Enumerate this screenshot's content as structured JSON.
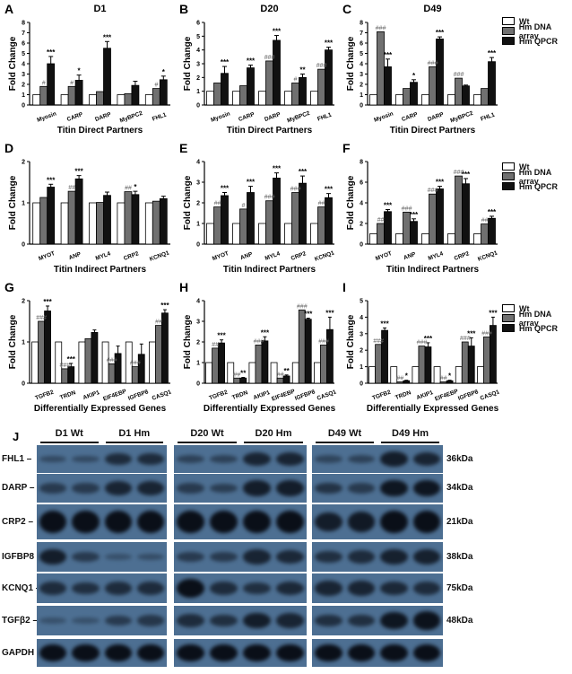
{
  "legend": {
    "items": [
      "Wt",
      "Hm DNA array",
      "Hm QPCR"
    ],
    "colors": [
      "#ffffff",
      "#707070",
      "#111111"
    ]
  },
  "chart_data": [
    {
      "panel": "A",
      "title": "D1",
      "type": "bar",
      "ylabel": "Fold Change",
      "xlabel": "Titin Direct Partners",
      "ylim": [
        0,
        8
      ],
      "yticks": [
        0,
        1,
        2,
        3,
        4,
        5,
        6,
        7,
        8
      ],
      "categories": [
        "Myosin",
        "CARP",
        "DARP",
        "MyBPC2",
        "FHL1"
      ],
      "series": [
        {
          "name": "Wt",
          "values": [
            1,
            1,
            1,
            1,
            1
          ]
        },
        {
          "name": "Hm DNA array",
          "values": [
            1.8,
            1.8,
            1.3,
            1.1,
            1.6
          ]
        },
        {
          "name": "Hm QPCR",
          "values": [
            4.0,
            2.4,
            5.5,
            1.9,
            2.45
          ],
          "errors": [
            0.7,
            0.5,
            0.65,
            0.4,
            0.35
          ]
        }
      ],
      "annotations": {
        "array": [
          "#",
          "#",
          "",
          "",
          "#"
        ],
        "qpcr": [
          "***",
          "*",
          "***",
          "",
          "*"
        ]
      }
    },
    {
      "panel": "B",
      "title": "D20",
      "type": "bar",
      "ylabel": "Fold Change",
      "xlabel": "Titin Direct Partners",
      "ylim": [
        0,
        6
      ],
      "yticks": [
        0,
        1,
        2,
        3,
        4,
        5,
        6
      ],
      "categories": [
        "Myosin",
        "CARP",
        "DARP",
        "MyBPC2",
        "FHL1"
      ],
      "series": [
        {
          "name": "Wt",
          "values": [
            1,
            1,
            1,
            1,
            1
          ]
        },
        {
          "name": "Hm DNA array",
          "values": [
            1.6,
            1.4,
            3.2,
            1.6,
            2.6
          ]
        },
        {
          "name": "Hm QPCR",
          "values": [
            2.3,
            2.7,
            4.7,
            2.0,
            4.0
          ],
          "errors": [
            0.5,
            0.2,
            0.35,
            0.25,
            0.2
          ]
        }
      ],
      "annotations": {
        "array": [
          "",
          "",
          "###",
          "#",
          "###"
        ],
        "qpcr": [
          "***",
          "***",
          "***",
          "**",
          "***"
        ]
      }
    },
    {
      "panel": "C",
      "title": "D49",
      "type": "bar",
      "ylabel": "Fold Change",
      "xlabel": "Titin Direct Partners",
      "ylim": [
        0,
        8
      ],
      "yticks": [
        0,
        1,
        2,
        3,
        4,
        5,
        6,
        7,
        8
      ],
      "categories": [
        "Myosin",
        "CARP",
        "DARP",
        "MyBPC2",
        "FHL1"
      ],
      "series": [
        {
          "name": "Wt",
          "values": [
            1,
            1,
            1,
            1,
            1
          ]
        },
        {
          "name": "Hm DNA array",
          "values": [
            7.1,
            1.6,
            3.7,
            2.6,
            1.6
          ]
        },
        {
          "name": "Hm QPCR",
          "values": [
            3.7,
            2.2,
            6.4,
            1.85,
            4.2
          ],
          "errors": [
            0.75,
            0.25,
            0.2,
            0.08,
            0.4
          ]
        }
      ],
      "annotations": {
        "array": [
          "###",
          "",
          "###",
          "###",
          ""
        ],
        "qpcr": [
          "***",
          "*",
          "***",
          "",
          "***"
        ]
      }
    },
    {
      "panel": "D",
      "title": "",
      "type": "bar",
      "ylabel": "Fold Change",
      "xlabel": "Titin Indirect Partners",
      "ylim": [
        0,
        2
      ],
      "yticks": [
        0,
        1,
        2
      ],
      "categories": [
        "MYOT",
        "ANP",
        "MYL4",
        "CRP2",
        "KCNQ1"
      ],
      "series": [
        {
          "name": "Wt",
          "values": [
            1,
            1,
            1,
            1,
            1
          ]
        },
        {
          "name": "Hm DNA array",
          "values": [
            1.13,
            1.28,
            1.01,
            1.27,
            1.04
          ]
        },
        {
          "name": "Hm QPCR",
          "values": [
            1.38,
            1.58,
            1.18,
            1.2,
            1.1
          ],
          "errors": [
            0.07,
            0.08,
            0.08,
            0.08,
            0.06
          ]
        }
      ],
      "annotations": {
        "array": [
          "",
          "##",
          "",
          "##",
          ""
        ],
        "qpcr": [
          "***",
          "***",
          "",
          "*",
          ""
        ]
      }
    },
    {
      "panel": "E",
      "title": "",
      "type": "bar",
      "ylabel": "Fold Change",
      "xlabel": "Titin Indirect Partners",
      "ylim": [
        0,
        4
      ],
      "yticks": [
        0,
        1,
        2,
        3,
        4
      ],
      "categories": [
        "MYOT",
        "ANP",
        "MYL4",
        "CRP2",
        "KCNQ1"
      ],
      "series": [
        {
          "name": "Wt",
          "values": [
            1,
            1,
            1,
            1,
            1
          ]
        },
        {
          "name": "Hm DNA array",
          "values": [
            1.8,
            1.7,
            2.1,
            2.5,
            1.8
          ]
        },
        {
          "name": "Hm QPCR",
          "values": [
            2.35,
            2.5,
            3.2,
            2.95,
            2.25
          ],
          "errors": [
            0.15,
            0.3,
            0.25,
            0.35,
            0.2
          ]
        }
      ],
      "annotations": {
        "array": [
          "##",
          "#",
          "###",
          "###",
          "##"
        ],
        "qpcr": [
          "***",
          "***",
          "***",
          "***",
          "***"
        ]
      }
    },
    {
      "panel": "F",
      "title": "",
      "type": "bar",
      "ylabel": "Fold Change",
      "xlabel": "Titin Indirect Partners",
      "ylim": [
        0,
        8
      ],
      "yticks": [
        0,
        2,
        4,
        6,
        8
      ],
      "categories": [
        "MYOT",
        "ANP",
        "MYL4",
        "CRP2",
        "KCNQ1"
      ],
      "series": [
        {
          "name": "Wt",
          "values": [
            1,
            1,
            1,
            1,
            1
          ]
        },
        {
          "name": "Hm DNA array",
          "values": [
            2.0,
            3.1,
            4.85,
            6.6,
            1.95
          ]
        },
        {
          "name": "Hm QPCR",
          "values": [
            3.15,
            2.2,
            5.35,
            5.85,
            2.5
          ],
          "errors": [
            0.2,
            0.25,
            0.25,
            0.5,
            0.2
          ]
        }
      ],
      "annotations": {
        "array": [
          "##",
          "###",
          "###",
          "###",
          "##"
        ],
        "qpcr": [
          "***",
          "***",
          "***",
          "***",
          "***"
        ]
      }
    },
    {
      "panel": "G",
      "title": "",
      "type": "bar",
      "ylabel": "Fold Change",
      "xlabel": "Differentially Expressed Genes",
      "ylim": [
        0,
        2
      ],
      "yticks": [
        0,
        1,
        2
      ],
      "categories": [
        "TGFB2",
        "TRDN",
        "AKIP1",
        "EIF4EBP",
        "IGFBP8",
        "CASQ1"
      ],
      "series": [
        {
          "name": "Wt",
          "values": [
            1,
            1,
            1,
            1,
            1,
            1
          ]
        },
        {
          "name": "Hm DNA array",
          "values": [
            1.5,
            0.35,
            1.08,
            0.47,
            0.4,
            1.4
          ]
        },
        {
          "name": "Hm QPCR",
          "values": [
            1.75,
            0.4,
            1.23,
            0.72,
            0.7,
            1.7
          ],
          "errors": [
            0.12,
            0.08,
            0.06,
            0.18,
            0.25,
            0.08
          ]
        }
      ],
      "annotations": {
        "array": [
          "###",
          "###",
          "",
          "###",
          "###",
          "##"
        ],
        "qpcr": [
          "***",
          "***",
          "",
          "",
          "",
          "***"
        ]
      }
    },
    {
      "panel": "H",
      "title": "",
      "type": "bar",
      "ylabel": "Fold Change",
      "xlabel": "Differentially Expressed Genes",
      "ylim": [
        0,
        4
      ],
      "yticks": [
        0,
        1,
        2,
        3,
        4
      ],
      "categories": [
        "TGFB2",
        "TRDN",
        "AKIP1",
        "EIF4EBP",
        "IGFBP8",
        "CASQ1"
      ],
      "series": [
        {
          "name": "Wt",
          "values": [
            1,
            1,
            1,
            1,
            1,
            1
          ]
        },
        {
          "name": "Hm DNA array",
          "values": [
            1.7,
            0.25,
            1.85,
            0.25,
            3.55,
            1.85
          ]
        },
        {
          "name": "Hm QPCR",
          "values": [
            1.95,
            0.25,
            2.05,
            0.35,
            3.1,
            2.6
          ],
          "errors": [
            0.15,
            0.03,
            0.2,
            0.05,
            0.05,
            0.6
          ]
        }
      ],
      "annotations": {
        "array": [
          "##",
          "##",
          "###",
          "##",
          "###",
          "###"
        ],
        "qpcr": [
          "***",
          "**",
          "***",
          "**",
          "***",
          "***"
        ]
      }
    },
    {
      "panel": "I",
      "title": "",
      "type": "bar",
      "ylabel": "Fold Change",
      "xlabel": "Differentially Expressed Genes",
      "ylim": [
        0,
        5
      ],
      "yticks": [
        0,
        1,
        2,
        3,
        4,
        5
      ],
      "categories": [
        "TGFB2",
        "TRDN",
        "AKIP1",
        "EIF4EBP",
        "IGFBP8",
        "CASQ1"
      ],
      "series": [
        {
          "name": "Wt",
          "values": [
            1,
            1,
            1,
            1,
            1,
            1
          ]
        },
        {
          "name": "Hm DNA array",
          "values": [
            2.35,
            0.08,
            2.25,
            0.08,
            2.5,
            2.8
          ]
        },
        {
          "name": "Hm QPCR",
          "values": [
            3.2,
            0.15,
            2.2,
            0.15,
            2.25,
            3.5
          ],
          "errors": [
            0.15,
            0.03,
            0.25,
            0.03,
            0.5,
            0.5
          ]
        }
      ],
      "annotations": {
        "array": [
          "###",
          "##",
          "###",
          "##",
          "###",
          "###"
        ],
        "qpcr": [
          "***",
          "*",
          "***",
          "*",
          "***",
          "***"
        ]
      }
    }
  ],
  "blot": {
    "panel": "J",
    "groups": [
      "D1 Wt",
      "D1 Hm",
      "D20 Wt",
      "D20 Hm",
      "D49 Wt",
      "D49 Hm"
    ],
    "rows": [
      {
        "label": "FHL1",
        "kda": "36kDa",
        "intensity": [
          [
            0.2,
            0.2,
            0.6,
            0.6
          ],
          [
            0.3,
            0.3,
            0.7,
            0.7
          ],
          [
            0.25,
            0.3,
            0.8,
            0.7
          ]
        ]
      },
      {
        "label": "DARP",
        "kda": "34kDa",
        "intensity": [
          [
            0.4,
            0.4,
            0.7,
            0.7
          ],
          [
            0.4,
            0.35,
            0.8,
            0.8
          ],
          [
            0.5,
            0.4,
            0.9,
            0.9
          ]
        ]
      },
      {
        "label": "CRP2",
        "kda": "21kDa",
        "intensity": [
          [
            1,
            1,
            1,
            1
          ],
          [
            1,
            1,
            1,
            1
          ],
          [
            0.8,
            0.85,
            1,
            1
          ]
        ]
      },
      {
        "label": "IGFBP8",
        "kda": "38kDa",
        "intensity": [
          [
            0.8,
            0.4,
            0.1,
            0.15
          ],
          [
            0.4,
            0.4,
            0.7,
            0.65
          ],
          [
            0.55,
            0.6,
            0.75,
            0.75
          ]
        ]
      },
      {
        "label": "KCNQ1",
        "kda": "75kDa",
        "intensity": [
          [
            0.6,
            0.55,
            0.6,
            0.6
          ],
          [
            1,
            0.6,
            0.55,
            0.65
          ],
          [
            0.7,
            0.7,
            0.65,
            0.6
          ]
        ]
      },
      {
        "label": "TGFβ2",
        "kda": "48kDa",
        "intensity": [
          [
            0.1,
            0.1,
            0.4,
            0.45
          ],
          [
            0.6,
            0.55,
            0.8,
            0.7
          ],
          [
            0.55,
            0.55,
            0.9,
            0.95
          ]
        ]
      },
      {
        "label": "GAPDH",
        "kda": "",
        "intensity": [
          [
            1,
            1,
            1,
            1
          ],
          [
            1,
            1,
            1,
            1
          ],
          [
            1,
            1,
            1,
            1
          ]
        ]
      }
    ]
  }
}
